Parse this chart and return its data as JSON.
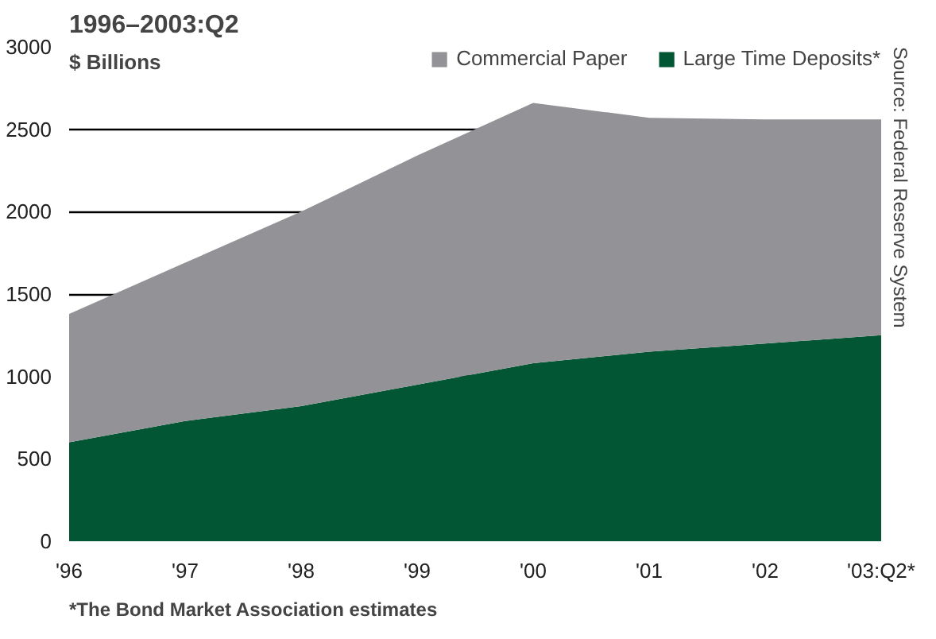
{
  "chart_data": {
    "type": "area",
    "title": "1996–2003:Q2",
    "ylabel": "$ Billions",
    "stacked": true,
    "categories": [
      "'96",
      "'97",
      "'98",
      "'99",
      "'00",
      "'01",
      "'02",
      "'03:Q2*"
    ],
    "series": [
      {
        "name": "Large Time Deposits*",
        "color": "#035634",
        "values": [
          600,
          730,
          820,
          950,
          1080,
          1150,
          1200,
          1250
        ]
      },
      {
        "name": "Commercial Paper",
        "color": "#939397",
        "values": [
          780,
          960,
          1180,
          1390,
          1580,
          1420,
          1360,
          1310
        ]
      }
    ],
    "ylim": [
      0,
      3000
    ],
    "yticks": [
      0,
      500,
      1000,
      1500,
      2000,
      2500,
      3000
    ],
    "grid": "y",
    "legend": "top right",
    "annotations": [
      "*The Bond Market Association estimates",
      "Source: Federal Reserve System"
    ]
  }
}
